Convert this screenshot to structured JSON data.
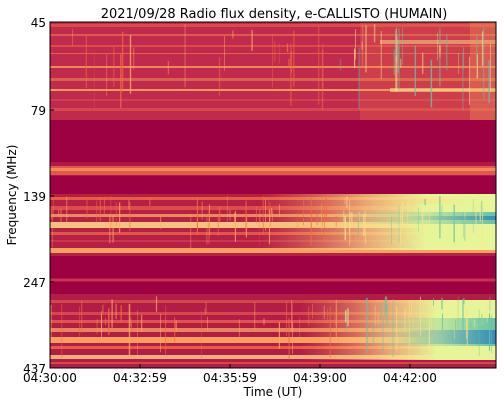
{
  "chart_data": {
    "type": "heatmap",
    "title": "2021/09/28  Radio flux density, e-CALLISTO (HUMAIN)",
    "xlabel": "Time (UT)",
    "ylabel": "Frequency (MHz)",
    "x_ticks": [
      "04:30:00",
      "04:32:59",
      "04:35:59",
      "04:39:00",
      "04:42:00"
    ],
    "y_ticks": [
      "45",
      "79",
      "139",
      "247",
      "437"
    ],
    "colormap": "Spectral",
    "colors": {
      "background": "#9e0142",
      "low": "#9e0142",
      "mid_low": "#d53e4f",
      "mid": "#f46d43",
      "mid_high": "#fdae61",
      "high": "#fee08b",
      "very_high": "#e6f598",
      "peak": "#66c2a5",
      "extreme": "#3288bd"
    },
    "grid": false,
    "legend": "none"
  }
}
